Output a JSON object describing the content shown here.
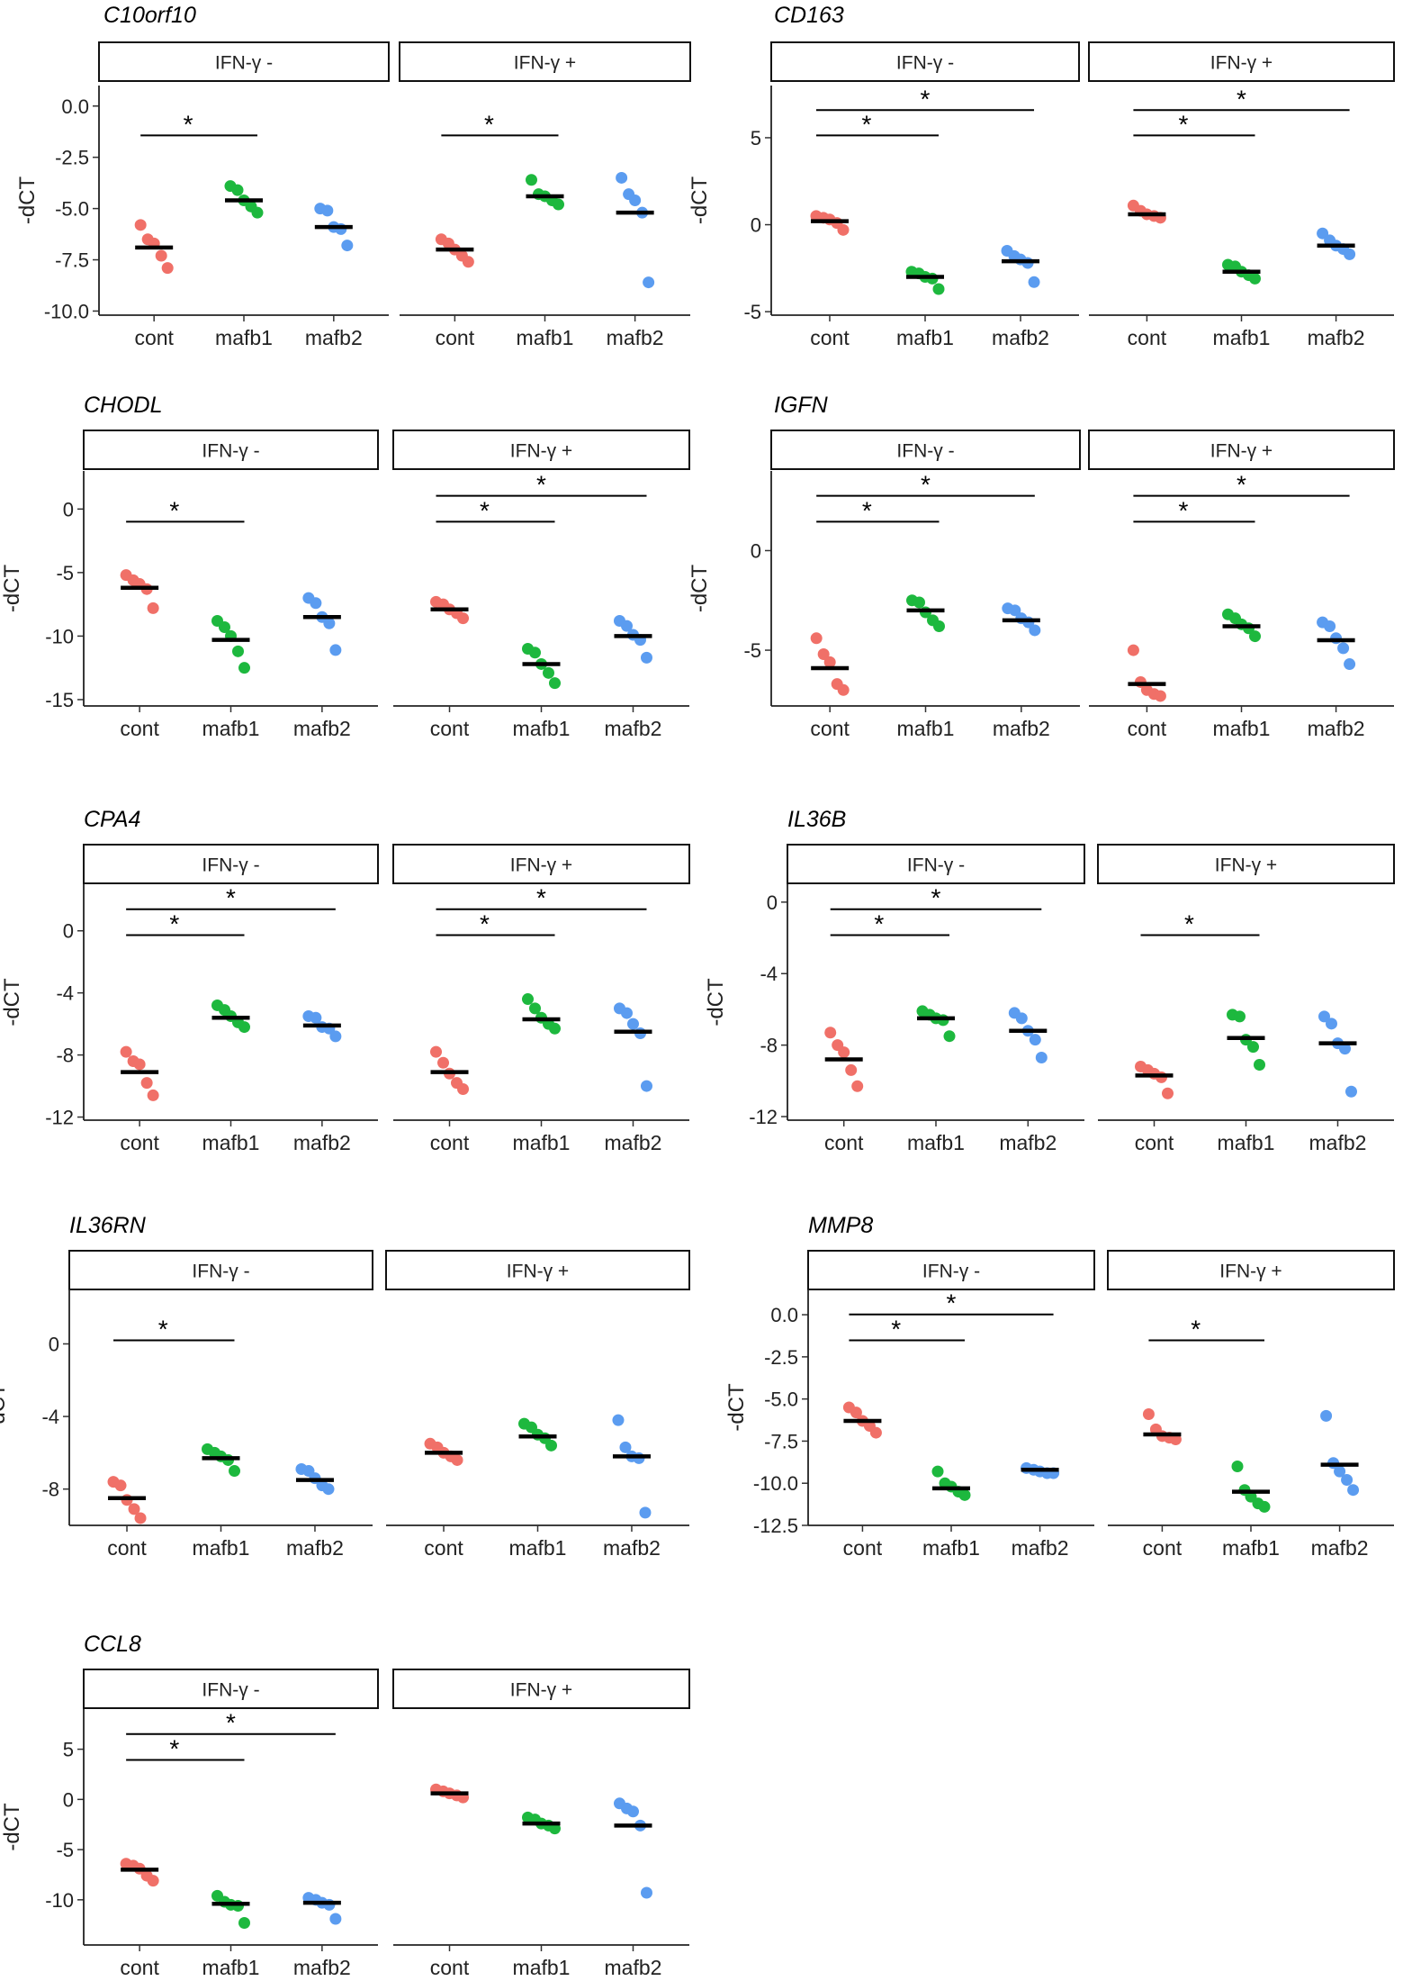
{
  "chart_data": {
    "type": "scatter",
    "description_free": true,
    "group_labels": [
      "cont",
      "mafb1",
      "mafb2"
    ],
    "group_colors": {
      "cont": "#F07068",
      "mafb1": "#1DB83E",
      "mafb2": "#5B9CF0"
    },
    "ylabel": "-dCT",
    "facet_labels": [
      "IFN-γ -",
      "IFN-γ +"
    ],
    "significance_marker": "*",
    "genes": [
      {
        "gene": "C10orf10",
        "ylim": [
          -10.2,
          1.0
        ],
        "yticks": [
          0,
          -2.5,
          -5,
          -7.5,
          -10
        ],
        "ytick_labels": [
          "0.0",
          "-2.5",
          "-5.0",
          "-7.5",
          "-10.0"
        ],
        "panels": [
          {
            "facet": "IFN-γ -",
            "points": {
              "cont": [
                -5.8,
                -6.5,
                -6.7,
                -7.3,
                -7.9
              ],
              "mafb1": [
                -3.9,
                -4.1,
                -4.6,
                -4.9,
                -5.2
              ],
              "mafb2": [
                -5.0,
                -5.1,
                -5.9,
                -6.0,
                -6.8
              ]
            },
            "means": {
              "cont": -6.9,
              "mafb1": -4.6,
              "mafb2": -5.9
            },
            "brackets": [
              {
                "from": "cont",
                "to": "mafb1",
                "level": 0
              }
            ]
          },
          {
            "facet": "IFN-γ +",
            "points": {
              "cont": [
                -6.5,
                -6.7,
                -7.0,
                -7.3,
                -7.6
              ],
              "mafb1": [
                -3.6,
                -4.3,
                -4.4,
                -4.6,
                -4.8
              ],
              "mafb2": [
                -3.5,
                -4.3,
                -4.6,
                -5.2,
                -8.6
              ]
            },
            "means": {
              "cont": -7.0,
              "mafb1": -4.4,
              "mafb2": -5.2
            },
            "brackets": [
              {
                "from": "cont",
                "to": "mafb1",
                "level": 0
              }
            ]
          }
        ]
      },
      {
        "gene": "CD163",
        "ylim": [
          -5.2,
          8.0
        ],
        "yticks": [
          5,
          0,
          -5
        ],
        "ytick_labels": [
          "5",
          "0",
          "-5"
        ],
        "panels": [
          {
            "facet": "IFN-γ -",
            "points": {
              "cont": [
                0.5,
                0.4,
                0.3,
                0.1,
                -0.3
              ],
              "mafb1": [
                -2.7,
                -2.8,
                -3.0,
                -3.1,
                -3.7
              ],
              "mafb2": [
                -1.5,
                -1.8,
                -2.0,
                -2.2,
                -3.3
              ]
            },
            "means": {
              "cont": 0.2,
              "mafb1": -3.0,
              "mafb2": -2.1
            },
            "brackets": [
              {
                "from": "cont",
                "to": "mafb1",
                "level": 0
              },
              {
                "from": "cont",
                "to": "mafb2",
                "level": 1
              }
            ]
          },
          {
            "facet": "IFN-γ +",
            "points": {
              "cont": [
                1.1,
                0.8,
                0.6,
                0.5,
                0.4
              ],
              "mafb1": [
                -2.3,
                -2.4,
                -2.7,
                -2.9,
                -3.1
              ],
              "mafb2": [
                -0.5,
                -0.9,
                -1.2,
                -1.4,
                -1.7
              ]
            },
            "means": {
              "cont": 0.6,
              "mafb1": -2.7,
              "mafb2": -1.2
            },
            "brackets": [
              {
                "from": "cont",
                "to": "mafb1",
                "level": 0
              },
              {
                "from": "cont",
                "to": "mafb2",
                "level": 1
              }
            ]
          }
        ]
      },
      {
        "gene": "CHODL",
        "ylim": [
          -15.5,
          3.0
        ],
        "yticks": [
          0,
          -5,
          -10,
          -15
        ],
        "ytick_labels": [
          "0",
          "-5",
          "-10",
          "-15"
        ],
        "panels": [
          {
            "facet": "IFN-γ -",
            "points": {
              "cont": [
                -5.2,
                -5.6,
                -5.9,
                -6.3,
                -7.8
              ],
              "mafb1": [
                -8.8,
                -9.3,
                -10.0,
                -11.2,
                -12.5
              ],
              "mafb2": [
                -7.0,
                -7.4,
                -8.5,
                -9.0,
                -11.1
              ]
            },
            "means": {
              "cont": -6.2,
              "mafb1": -10.3,
              "mafb2": -8.5
            },
            "brackets": [
              {
                "from": "cont",
                "to": "mafb1",
                "level": 0
              }
            ]
          },
          {
            "facet": "IFN-γ +",
            "points": {
              "cont": [
                -7.3,
                -7.5,
                -7.9,
                -8.2,
                -8.6
              ],
              "mafb1": [
                -11.0,
                -11.3,
                -12.2,
                -12.9,
                -13.7
              ],
              "mafb2": [
                -8.8,
                -9.2,
                -9.9,
                -10.3,
                -11.7
              ]
            },
            "means": {
              "cont": -7.9,
              "mafb1": -12.2,
              "mafb2": -10.0
            },
            "brackets": [
              {
                "from": "cont",
                "to": "mafb1",
                "level": 0
              },
              {
                "from": "cont",
                "to": "mafb2",
                "level": 1
              }
            ]
          }
        ]
      },
      {
        "gene": "IGFN",
        "ylim": [
          -7.8,
          4.0
        ],
        "yticks": [
          0,
          -5
        ],
        "ytick_labels": [
          "0",
          "-5"
        ],
        "panels": [
          {
            "facet": "IFN-γ -",
            "points": {
              "cont": [
                -4.4,
                -5.2,
                -5.6,
                -6.7,
                -7.0
              ],
              "mafb1": [
                -2.5,
                -2.6,
                -3.1,
                -3.5,
                -3.8
              ],
              "mafb2": [
                -2.9,
                -3.0,
                -3.4,
                -3.6,
                -4.0
              ]
            },
            "means": {
              "cont": -5.9,
              "mafb1": -3.0,
              "mafb2": -3.5
            },
            "brackets": [
              {
                "from": "cont",
                "to": "mafb1",
                "level": 0
              },
              {
                "from": "cont",
                "to": "mafb2",
                "level": 1
              }
            ]
          },
          {
            "facet": "IFN-γ +",
            "points": {
              "cont": [
                -5.0,
                -6.6,
                -7.0,
                -7.2,
                -7.3
              ],
              "mafb1": [
                -3.2,
                -3.4,
                -3.7,
                -3.9,
                -4.3
              ],
              "mafb2": [
                -3.6,
                -3.8,
                -4.4,
                -4.9,
                -5.7
              ]
            },
            "means": {
              "cont": -6.7,
              "mafb1": -3.8,
              "mafb2": -4.5
            },
            "brackets": [
              {
                "from": "cont",
                "to": "mafb1",
                "level": 0
              },
              {
                "from": "cont",
                "to": "mafb2",
                "level": 1
              }
            ]
          }
        ]
      },
      {
        "gene": "CPA4",
        "ylim": [
          -12.2,
          3.0
        ],
        "yticks": [
          0,
          -4,
          -8,
          -12
        ],
        "ytick_labels": [
          "0",
          "-4",
          "-8",
          "-12"
        ],
        "panels": [
          {
            "facet": "IFN-γ -",
            "points": {
              "cont": [
                -7.8,
                -8.4,
                -8.6,
                -9.8,
                -10.6
              ],
              "mafb1": [
                -4.8,
                -5.1,
                -5.5,
                -5.9,
                -6.2
              ],
              "mafb2": [
                -5.5,
                -5.6,
                -6.2,
                -6.3,
                -6.8
              ]
            },
            "means": {
              "cont": -9.1,
              "mafb1": -5.6,
              "mafb2": -6.1
            },
            "brackets": [
              {
                "from": "cont",
                "to": "mafb1",
                "level": 0
              },
              {
                "from": "cont",
                "to": "mafb2",
                "level": 1
              }
            ]
          },
          {
            "facet": "IFN-γ +",
            "points": {
              "cont": [
                -7.8,
                -8.5,
                -9.2,
                -9.8,
                -10.2
              ],
              "mafb1": [
                -4.4,
                -5.0,
                -5.6,
                -6.0,
                -6.3
              ],
              "mafb2": [
                -5.0,
                -5.3,
                -6.0,
                -6.6,
                -10.0
              ]
            },
            "means": {
              "cont": -9.1,
              "mafb1": -5.7,
              "mafb2": -6.5
            },
            "brackets": [
              {
                "from": "cont",
                "to": "mafb1",
                "level": 0
              },
              {
                "from": "cont",
                "to": "mafb2",
                "level": 1
              }
            ]
          }
        ]
      },
      {
        "gene": "IL36B",
        "ylim": [
          -12.2,
          1.0
        ],
        "yticks": [
          0,
          -4,
          -8,
          -12
        ],
        "ytick_labels": [
          "0",
          "-4",
          "-8",
          "-12"
        ],
        "panels": [
          {
            "facet": "IFN-γ -",
            "points": {
              "cont": [
                -7.3,
                -8.0,
                -8.4,
                -9.4,
                -10.3
              ],
              "mafb1": [
                -6.1,
                -6.3,
                -6.5,
                -6.6,
                -7.5
              ],
              "mafb2": [
                -6.2,
                -6.5,
                -7.2,
                -7.7,
                -8.7
              ]
            },
            "means": {
              "cont": -8.8,
              "mafb1": -6.5,
              "mafb2": -7.2
            },
            "brackets": [
              {
                "from": "cont",
                "to": "mafb1",
                "level": 0
              },
              {
                "from": "cont",
                "to": "mafb2",
                "level": 1
              }
            ]
          },
          {
            "facet": "IFN-γ +",
            "points": {
              "cont": [
                -9.2,
                -9.4,
                -9.6,
                -9.8,
                -10.7
              ],
              "mafb1": [
                -6.3,
                -6.4,
                -7.7,
                -8.1,
                -9.1
              ],
              "mafb2": [
                -6.4,
                -6.8,
                -7.9,
                -8.2,
                -10.6
              ]
            },
            "means": {
              "cont": -9.7,
              "mafb1": -7.6,
              "mafb2": -7.9
            },
            "brackets": [
              {
                "from": "cont",
                "to": "mafb1",
                "level": 0
              }
            ]
          }
        ]
      },
      {
        "gene": "IL36RN",
        "ylim": [
          -10.0,
          3.0
        ],
        "yticks": [
          0,
          -4,
          -8
        ],
        "ytick_labels": [
          "0",
          "-4",
          "-8"
        ],
        "panels": [
          {
            "facet": "IFN-γ -",
            "points": {
              "cont": [
                -7.6,
                -7.8,
                -8.6,
                -9.1,
                -9.6
              ],
              "mafb1": [
                -5.8,
                -6.0,
                -6.2,
                -6.4,
                -7.0
              ],
              "mafb2": [
                -6.9,
                -7.0,
                -7.4,
                -7.8,
                -8.0
              ]
            },
            "means": {
              "cont": -8.5,
              "mafb1": -6.3,
              "mafb2": -7.5
            },
            "brackets": [
              {
                "from": "cont",
                "to": "mafb1",
                "level": 0
              }
            ]
          },
          {
            "facet": "IFN-γ +",
            "points": {
              "cont": [
                -5.5,
                -5.7,
                -6.0,
                -6.2,
                -6.4
              ],
              "mafb1": [
                -4.4,
                -4.6,
                -5.0,
                -5.2,
                -5.6
              ],
              "mafb2": [
                -4.2,
                -5.7,
                -6.2,
                -6.3,
                -9.3
              ]
            },
            "means": {
              "cont": -6.0,
              "mafb1": -5.1,
              "mafb2": -6.2
            },
            "brackets": []
          }
        ]
      },
      {
        "gene": "MMP8",
        "ylim": [
          -12.5,
          1.5
        ],
        "yticks": [
          0,
          -2.5,
          -5,
          -7.5,
          -10,
          -12.5
        ],
        "ytick_labels": [
          "0.0",
          "-2.5",
          "-5.0",
          "-7.5",
          "-10.0",
          "-12.5"
        ],
        "panels": [
          {
            "facet": "IFN-γ -",
            "points": {
              "cont": [
                -5.5,
                -5.8,
                -6.3,
                -6.6,
                -7.0
              ],
              "mafb1": [
                -9.3,
                -10.0,
                -10.2,
                -10.5,
                -10.7
              ],
              "mafb2": [
                -9.1,
                -9.2,
                -9.3,
                -9.4,
                -9.4
              ]
            },
            "means": {
              "cont": -6.3,
              "mafb1": -10.3,
              "mafb2": -9.2
            },
            "brackets": [
              {
                "from": "cont",
                "to": "mafb1",
                "level": 0
              },
              {
                "from": "cont",
                "to": "mafb2",
                "level": 1
              }
            ]
          },
          {
            "facet": "IFN-γ +",
            "points": {
              "cont": [
                -5.9,
                -6.8,
                -7.2,
                -7.3,
                -7.4
              ],
              "mafb1": [
                -9.0,
                -10.4,
                -10.8,
                -11.2,
                -11.4
              ],
              "mafb2": [
                -6.0,
                -8.8,
                -9.3,
                -9.8,
                -10.4
              ]
            },
            "means": {
              "cont": -7.1,
              "mafb1": -10.5,
              "mafb2": -8.9
            },
            "brackets": [
              {
                "from": "cont",
                "to": "mafb1",
                "level": 0
              }
            ]
          }
        ]
      },
      {
        "gene": "CCL8",
        "ylim": [
          -14.5,
          9.0
        ],
        "yticks": [
          5,
          0,
          -5,
          -10
        ],
        "ytick_labels": [
          "5",
          "0",
          "-5",
          "-10"
        ],
        "panels": [
          {
            "facet": "IFN-γ -",
            "points": {
              "cont": [
                -6.4,
                -6.6,
                -6.9,
                -7.6,
                -8.1
              ],
              "mafb1": [
                -9.6,
                -10.2,
                -10.5,
                -10.6,
                -12.3
              ],
              "mafb2": [
                -9.8,
                -10.0,
                -10.3,
                -10.5,
                -11.9
              ]
            },
            "means": {
              "cont": -7.0,
              "mafb1": -10.4,
              "mafb2": -10.3
            },
            "brackets": [
              {
                "from": "cont",
                "to": "mafb1",
                "level": 0
              },
              {
                "from": "cont",
                "to": "mafb2",
                "level": 1
              }
            ]
          },
          {
            "facet": "IFN-γ +",
            "points": {
              "cont": [
                1.0,
                0.8,
                0.6,
                0.4,
                0.2
              ],
              "mafb1": [
                -1.8,
                -2.0,
                -2.4,
                -2.6,
                -2.9
              ],
              "mafb2": [
                -0.4,
                -0.9,
                -1.2,
                -2.6,
                -9.3
              ]
            },
            "means": {
              "cont": 0.6,
              "mafb1": -2.4,
              "mafb2": -2.6
            },
            "brackets": []
          }
        ]
      }
    ]
  }
}
